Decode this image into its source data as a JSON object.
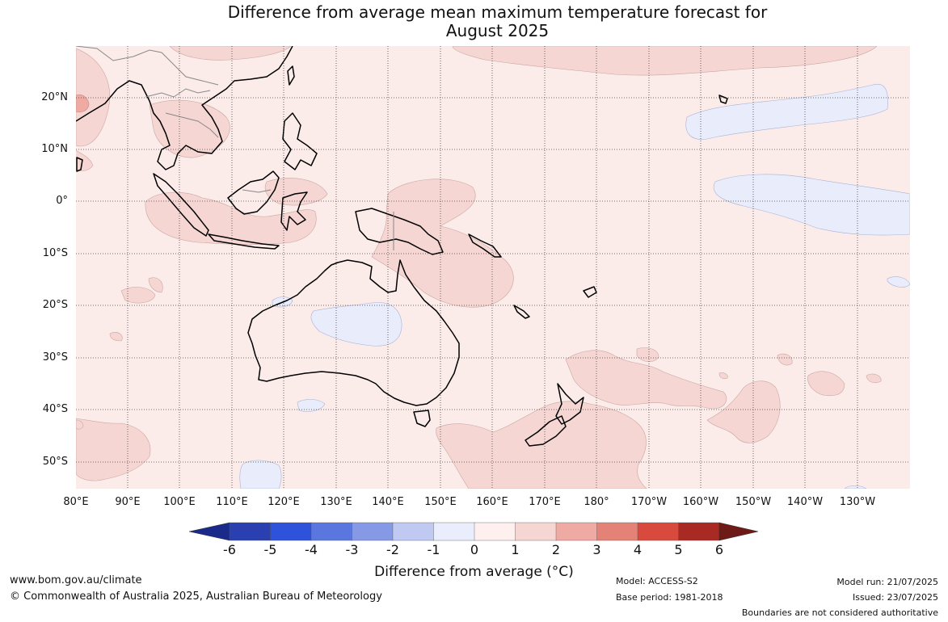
{
  "title_line1": "Difference from average mean maximum temperature forecast for",
  "title_line2": "August 2025",
  "lat_labels": [
    "20°N",
    "10°N",
    "0°",
    "10°S",
    "20°S",
    "30°S",
    "40°S",
    "50°S"
  ],
  "lon_labels": [
    "80°E",
    "90°E",
    "100°E",
    "110°E",
    "120°E",
    "130°E",
    "140°E",
    "150°E",
    "160°E",
    "170°E",
    "180°",
    "170°W",
    "160°W",
    "150°W",
    "140°W",
    "130°W"
  ],
  "colorbar": {
    "title": "Difference from average (°C)",
    "ticks": [
      "-6",
      "-5",
      "-4",
      "-3",
      "-2",
      "-1",
      "0",
      "1",
      "2",
      "3",
      "4",
      "5",
      "6"
    ],
    "colors": [
      "#1a2a8a",
      "#2a3fb0",
      "#2f52dc",
      "#5a77e0",
      "#8599e6",
      "#bfc9f2",
      "#eaeefc",
      "#fdf0ee",
      "#f6d6d3",
      "#eeaaa3",
      "#e48278",
      "#d74a3d",
      "#a82a22",
      "#6e1a16"
    ]
  },
  "footer": {
    "url": "www.bom.gov.au/climate",
    "copyright": "© Commonwealth of Australia 2025, Australian Bureau of Meteorology",
    "model": "Model: ACCESS-S2",
    "base_period": "Base period: 1981-2018",
    "model_run": "Model run: 21/07/2025",
    "issued": "Issued: 23/07/2025",
    "disclaimer": "Boundaries are not considered authoritative"
  }
}
